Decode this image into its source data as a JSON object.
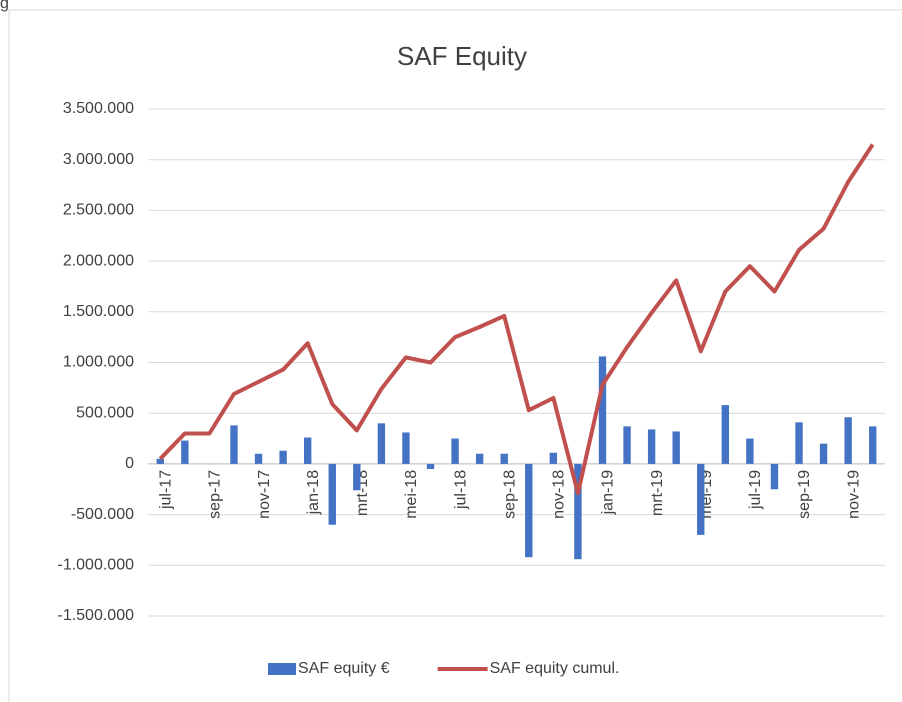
{
  "fragment": "g",
  "chart_data": {
    "type": "bar-line",
    "title": "SAF Equity",
    "categories": [
      "jul-17",
      null,
      "sep-17",
      null,
      "nov-17",
      null,
      "jan-18",
      null,
      "mrt-18",
      null,
      "mei-18",
      null,
      "jul-18",
      null,
      "sep-18",
      null,
      "nov-18",
      null,
      "jan-19",
      null,
      "mrt-19",
      null,
      "mei-19",
      null,
      "jul-19",
      null,
      "sep-19",
      null,
      "nov-19",
      null
    ],
    "series": [
      {
        "name": "SAF equity €",
        "type": "bar",
        "color": "#4472c4",
        "values": [
          50000,
          230000,
          0,
          380000,
          100000,
          130000,
          260000,
          -600000,
          -260000,
          400000,
          310000,
          -50000,
          250000,
          100000,
          100000,
          -920000,
          110000,
          -940000,
          1060000,
          370000,
          340000,
          320000,
          -700000,
          580000,
          250000,
          -250000,
          410000,
          200000,
          460000,
          370000
        ]
      },
      {
        "name": "SAF equity cumul.",
        "type": "line",
        "color": "#c0504d",
        "values": [
          50000,
          300000,
          300000,
          690000,
          810000,
          930000,
          1190000,
          590000,
          330000,
          740000,
          1050000,
          1000000,
          1250000,
          1350000,
          1460000,
          530000,
          650000,
          -290000,
          780000,
          1150000,
          1490000,
          1810000,
          1110000,
          1700000,
          1950000,
          1700000,
          2110000,
          2320000,
          2780000,
          3150000
        ]
      }
    ],
    "ylim": [
      -1500000,
      3500000
    ],
    "yticks": [
      {
        "value": -1500000,
        "label": "-1.500.000"
      },
      {
        "value": -1000000,
        "label": "-1.000.000"
      },
      {
        "value": -500000,
        "label": "-500.000"
      },
      0,
      {
        "value": 500000,
        "label": "500.000"
      },
      {
        "value": 1000000,
        "label": "1.000.000"
      },
      {
        "value": 1500000,
        "label": "1.500.000"
      },
      {
        "value": 2000000,
        "label": "2.000.000"
      },
      {
        "value": 2500000,
        "label": "2.500.000"
      },
      {
        "value": 3000000,
        "label": "3.000.000"
      },
      {
        "value": 3500000,
        "label": "3.500.000"
      }
    ],
    "grid": true,
    "legend": "bottom"
  }
}
